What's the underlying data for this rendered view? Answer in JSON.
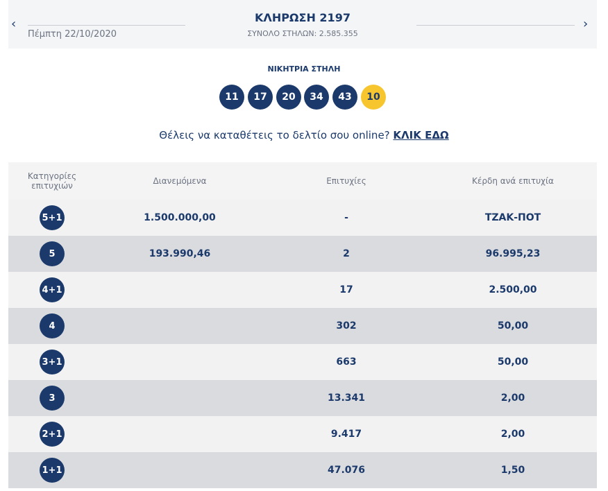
{
  "header": {
    "date": "Πέμπτη 22/10/2020",
    "title": "ΚΛΗΡΩΣΗ 2197",
    "subtitle": "ΣΥΝΟΛΟ ΣΤΗΛΩΝ: 2.585.355"
  },
  "winning": {
    "label": "ΝΙΚΗΤΡΙΑ ΣΤΗΛΗ",
    "numbers": [
      "11",
      "17",
      "20",
      "34",
      "43"
    ],
    "joker": "10"
  },
  "prompt": {
    "text": "Θέλεις να καταθέτεις το δελτίο σου online?",
    "link": "ΚΛΙΚ ΕΔΩ"
  },
  "table": {
    "headers": [
      "Κατηγορίες επιτυχιών",
      "Διανεμόμενα",
      "Επιτυχίες",
      "Κέρδη ανά επιτυχία"
    ],
    "rows": [
      [
        "5+1",
        "1.500.000,00",
        "-",
        "ΤΖΑΚ-ΠΟΤ"
      ],
      [
        "5",
        "193.990,46",
        "2",
        "96.995,23"
      ],
      [
        "4+1",
        "",
        "17",
        "2.500,00"
      ],
      [
        "4",
        "",
        "302",
        "50,00"
      ],
      [
        "3+1",
        "",
        "663",
        "50,00"
      ],
      [
        "3",
        "",
        "13.341",
        "2,00"
      ],
      [
        "2+1",
        "",
        "9.417",
        "2,00"
      ],
      [
        "1+1",
        "",
        "47.076",
        "1,50"
      ]
    ]
  }
}
